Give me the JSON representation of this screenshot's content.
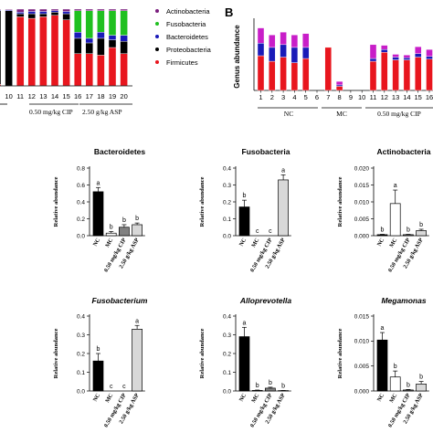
{
  "colors": {
    "Actinobacteria": "#7b1f7e",
    "Fusobacteria": "#20c020",
    "Bacteroidetes": "#1a1ab8",
    "Proteobacteria": "#000000",
    "Firmicutes": "#e8161e",
    "genusPurple": "#c81ec8",
    "NC": "#000000",
    "MC": "#ffffff",
    "CIP": "#808080",
    "ASP": "#d8d8d8"
  },
  "panelA": {
    "legend": [
      "Actinobacteria",
      "Fusobacteria",
      "Bacteroidetes",
      "Proteobacteria",
      "Firmicutes"
    ],
    "groupLabels": [
      "0.50 mg/kg CIP",
      "2.50 g/kg ASP"
    ]
  },
  "panelB": {
    "letter": "B",
    "ylabel": "Genus abundance",
    "groupLabels": [
      "NC",
      "MC",
      "0.50 mg/kg CIP",
      "2.50 g/kg ASP"
    ]
  },
  "chart_data": [
    {
      "type": "bar",
      "panel": "A",
      "x": [
        "9",
        "10",
        "11",
        "12",
        "13",
        "14",
        "15",
        "16",
        "17",
        "18",
        "19",
        "20"
      ],
      "series": [
        {
          "name": "Firmicutes",
          "values": [
            0.02,
            0.0,
            0.9,
            0.88,
            0.9,
            0.92,
            0.86,
            0.42,
            0.42,
            0.4,
            0.5,
            0.42
          ]
        },
        {
          "name": "Proteobacteria",
          "values": [
            0.96,
            0.98,
            0.04,
            0.06,
            0.04,
            0.04,
            0.08,
            0.2,
            0.14,
            0.22,
            0.1,
            0.16
          ]
        },
        {
          "name": "Bacteroidetes",
          "values": [
            0.01,
            0.01,
            0.02,
            0.03,
            0.03,
            0.02,
            0.03,
            0.08,
            0.06,
            0.08,
            0.06,
            0.08
          ]
        },
        {
          "name": "Fusobacteria",
          "values": [
            0.0,
            0.0,
            0.0,
            0.0,
            0.0,
            0.0,
            0.0,
            0.28,
            0.36,
            0.28,
            0.32,
            0.32
          ]
        },
        {
          "name": "Actinobacteria",
          "values": [
            0.01,
            0.01,
            0.04,
            0.03,
            0.03,
            0.02,
            0.03,
            0.02,
            0.02,
            0.02,
            0.02,
            0.02
          ]
        }
      ]
    },
    {
      "type": "bar",
      "panel": "B",
      "ylabel": "Genus abundance",
      "x": [
        "1",
        "2",
        "3",
        "4",
        "5",
        "6",
        "7",
        "8",
        "9",
        "10",
        "11",
        "12",
        "13",
        "14",
        "15",
        "16"
      ],
      "series": [
        {
          "name": "red",
          "values": [
            0.5,
            0.42,
            0.48,
            0.4,
            0.46,
            0.0,
            0.62,
            0.06,
            0.0,
            0.0,
            0.42,
            0.55,
            0.44,
            0.44,
            0.48,
            0.45
          ]
        },
        {
          "name": "blue",
          "values": [
            0.18,
            0.2,
            0.18,
            0.22,
            0.16,
            0.0,
            0.0,
            0.02,
            0.0,
            0.0,
            0.04,
            0.04,
            0.04,
            0.03,
            0.05,
            0.04
          ]
        },
        {
          "name": "purple",
          "values": [
            0.22,
            0.18,
            0.18,
            0.18,
            0.2,
            0.0,
            0.0,
            0.05,
            0.0,
            0.0,
            0.2,
            0.06,
            0.04,
            0.04,
            0.1,
            0.1
          ]
        }
      ]
    },
    {
      "type": "bar",
      "title": "Bacteroidetes",
      "ylabel": "Relative abundance",
      "categories": [
        "NC",
        "MC",
        "0.50 mg/kg CIP",
        "2.50 g/kg ASP"
      ],
      "values": [
        0.52,
        0.03,
        0.1,
        0.13
      ],
      "errors": [
        0.05,
        0.02,
        0.03,
        0.02
      ],
      "letters": [
        "a",
        "b",
        "b",
        "b"
      ],
      "ylim": [
        0,
        0.8
      ],
      "ticks": [
        "0.0",
        "0.2",
        "0.4",
        "0.6",
        "0.8"
      ]
    },
    {
      "type": "bar",
      "title": "Fusobacteria",
      "ylabel": "Relative abundance",
      "categories": [
        "NC",
        "MC",
        "0.50 mg/kg CIP",
        "2.50 g/kg ASP"
      ],
      "values": [
        0.17,
        0.0,
        0.0,
        0.33
      ],
      "errors": [
        0.04,
        0,
        0,
        0.03
      ],
      "letters": [
        "b",
        "c",
        "c",
        "a"
      ],
      "ylim": [
        0,
        0.4
      ],
      "ticks": [
        "0.0",
        "0.1",
        "0.2",
        "0.3",
        "0.4"
      ]
    },
    {
      "type": "bar",
      "title": "Actinobacteria",
      "ylabel": "Relative abundance",
      "categories": [
        "NC",
        "MC",
        "0.50 mg/kg CIP",
        "2.50 g/kg ASP"
      ],
      "values": [
        0.0003,
        0.0095,
        0.0003,
        0.0015
      ],
      "errors": [
        0.0001,
        0.004,
        0.0001,
        0.0004
      ],
      "letters": [
        "b",
        "a",
        "b",
        "b"
      ],
      "ylim": [
        0,
        0.02
      ],
      "ticks": [
        "0.000",
        "0.005",
        "0.010",
        "0.015",
        "0.020"
      ]
    },
    {
      "type": "bar",
      "title": "Fusobacterium",
      "ylabel": "Relative abundance",
      "categories": [
        "NC",
        "MC",
        "0.50 mg/kg CIP",
        "2.50 g/kg ASP"
      ],
      "values": [
        0.16,
        0.0,
        0.0,
        0.33
      ],
      "errors": [
        0.04,
        0,
        0,
        0.02
      ],
      "letters": [
        "b",
        "c",
        "c",
        "a"
      ],
      "ylim": [
        0,
        0.4
      ],
      "ticks": [
        "0.0",
        "0.1",
        "0.2",
        "0.3",
        "0.4"
      ]
    },
    {
      "type": "bar",
      "title": "Alloprevotella",
      "ylabel": "Relative abundance",
      "categories": [
        "NC",
        "MC",
        "0.50 mg/kg CIP",
        "2.50 g/kg ASP"
      ],
      "values": [
        0.29,
        0.003,
        0.015,
        0.002
      ],
      "errors": [
        0.05,
        0.002,
        0.005,
        0.001
      ],
      "letters": [
        "a",
        "b",
        "b",
        "b"
      ],
      "ylim": [
        0,
        0.4
      ],
      "ticks": [
        "0.0",
        "0.1",
        "0.2",
        "0.3",
        "0.4"
      ]
    },
    {
      "type": "bar",
      "title": "Megamonas",
      "ylabel": "Relative abundance",
      "categories": [
        "NC",
        "MC",
        "0.50 mg/kg CIP",
        "2.50 g/kg ASP"
      ],
      "values": [
        0.0102,
        0.0028,
        0.0002,
        0.0014
      ],
      "errors": [
        0.0015,
        0.0012,
        0.0001,
        0.0005
      ],
      "letters": [
        "a",
        "b",
        "b",
        "b"
      ],
      "ylim": [
        0,
        0.015
      ],
      "ticks": [
        "0.000",
        "0.005",
        "0.010",
        "0.015"
      ]
    }
  ]
}
